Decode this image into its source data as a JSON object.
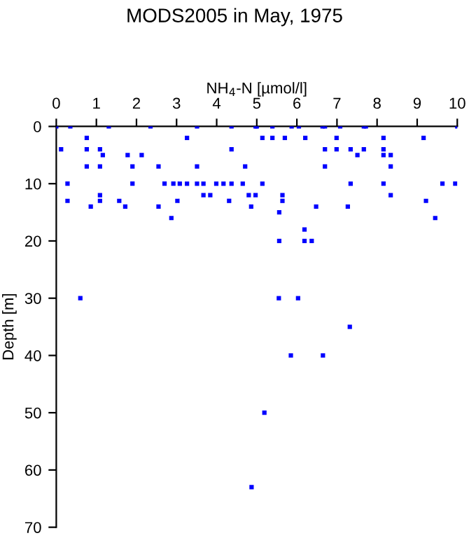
{
  "chart_data": {
    "type": "scatter",
    "title": "MODS2005 in May, 1975",
    "xlabel": "NH$_{4}$-N [µmol/l]",
    "ylabel": "Depth [m]",
    "xlim": [
      0,
      10
    ],
    "xticks": [
      0,
      1,
      2,
      3,
      4,
      5,
      6,
      7,
      8,
      9,
      10
    ],
    "ylim": [
      70,
      0
    ],
    "yticks": [
      0,
      10,
      20,
      30,
      40,
      50,
      60,
      70
    ],
    "grid": false,
    "marker": "square",
    "series": [
      {
        "color": "#0000ff",
        "x": [
          0,
          0.35,
          0.12,
          0.76,
          0.76,
          0.76,
          0.28,
          0.28,
          0.86,
          1.09,
          1.09,
          1.16,
          1.09,
          1.09,
          1.31,
          1.78,
          2.13,
          1.9,
          1.9,
          1.57,
          1.72,
          2.35,
          2.55,
          2.55,
          2.7,
          2.87,
          2.92,
          3.08,
          3.02,
          3.26,
          3.26,
          3.51,
          3.51,
          3.51,
          3.67,
          3.67,
          3.84,
          3.99,
          4.17,
          4.31,
          4.37,
          4.37,
          4.37,
          4.65,
          4.71,
          4.8,
          4.86,
          4.97,
          4.97,
          5.14,
          5.14,
          5,
          5.39,
          5.87,
          6.05,
          6.64,
          6.7,
          7.08,
          7.67,
          7.72,
          10,
          5.39,
          5.7,
          6.21,
          6.99,
          8.16,
          9.16,
          6.7,
          6.99,
          7.34,
          7.67,
          7.51,
          8.16,
          8.16,
          8.34,
          6.7,
          8.34,
          7.34,
          8.16,
          9.63,
          9.95,
          5.64,
          5.64,
          8.34,
          9.22,
          5.56,
          6.48,
          7.27,
          9.45,
          6.19,
          5.56,
          6.19,
          6.37,
          0.6,
          5.55,
          6.03,
          7.32,
          5.85,
          6.65,
          5.19,
          4.87
        ],
        "values": [
          0,
          0,
          4,
          2,
          4,
          7,
          10,
          13,
          14,
          4,
          7,
          5,
          12,
          13,
          0,
          5,
          5,
          7,
          10,
          13,
          14,
          0,
          7,
          14,
          10,
          16,
          10,
          10,
          13,
          2,
          10,
          0,
          7,
          10,
          10,
          12,
          12,
          10,
          10,
          13,
          0,
          4,
          10,
          10,
          7,
          12,
          14,
          0,
          12,
          2,
          10,
          0,
          0,
          0,
          0,
          0,
          0,
          0,
          0,
          0,
          0,
          2,
          2,
          2,
          2,
          2,
          2,
          4,
          4,
          4,
          4,
          5,
          4,
          5,
          5,
          7,
          7,
          10,
          10,
          10,
          10,
          12,
          13,
          12,
          13,
          15,
          14,
          14,
          16,
          18,
          20,
          20,
          20,
          30,
          30,
          30,
          35,
          40,
          40,
          50,
          63
        ]
      }
    ]
  }
}
